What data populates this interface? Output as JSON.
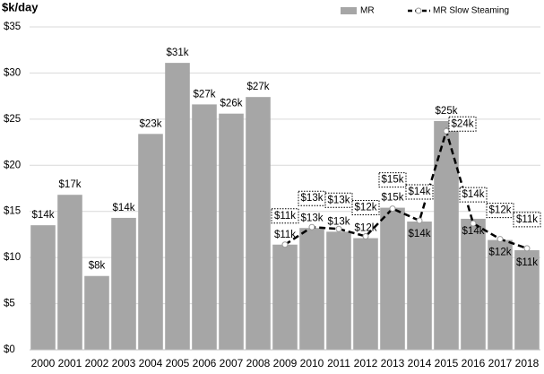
{
  "chart_data": {
    "type": "bar",
    "y_label": "$k/day",
    "categories": [
      "2000",
      "2001",
      "2002",
      "2003",
      "2004",
      "2005",
      "2006",
      "2007",
      "2008",
      "2009",
      "2010",
      "2011",
      "2012",
      "2013",
      "2014",
      "2015",
      "2016",
      "2017",
      "2018"
    ],
    "series": [
      {
        "name": "MR",
        "type": "bar",
        "color": "#a6a6a6",
        "values": [
          13.5,
          16.8,
          8.0,
          14.3,
          23.4,
          31.1,
          26.6,
          25.6,
          27.4,
          11.4,
          13.2,
          12.8,
          12.1,
          15.4,
          13.9,
          24.8,
          14.2,
          11.9,
          10.8
        ],
        "value_labels": [
          "$14k",
          "$17k",
          "$8k",
          "$14k",
          "$23k",
          "$31k",
          "$27k",
          "$26k",
          "$27k",
          "$11k",
          "$13k",
          "$13k",
          "$12k",
          "$15k",
          "$14k",
          "$25k",
          "$14k",
          "$12k",
          "$11k"
        ]
      },
      {
        "name": "MR Slow Steaming",
        "type": "line",
        "color": "#000000",
        "values": [
          null,
          null,
          null,
          null,
          null,
          null,
          null,
          null,
          null,
          11.4,
          13.3,
          13.1,
          12.3,
          15.3,
          14.0,
          23.7,
          13.7,
          12.0,
          11.0
        ],
        "value_labels": [
          null,
          null,
          null,
          null,
          null,
          null,
          null,
          null,
          null,
          "$11k",
          "$13k",
          "$13k",
          "$12k",
          "$15k",
          "$14k",
          "$24k",
          "$14k",
          "$12k",
          "$11k"
        ]
      }
    ],
    "ylim": [
      0,
      35
    ],
    "yticks": [
      {
        "value": 0,
        "label": "$0"
      },
      {
        "value": 5,
        "label": "$5"
      },
      {
        "value": 10,
        "label": "$10"
      },
      {
        "value": 15,
        "label": "$15"
      },
      {
        "value": 20,
        "label": "$20"
      },
      {
        "value": 25,
        "label": "$25"
      },
      {
        "value": 30,
        "label": "$30"
      },
      {
        "value": 35,
        "label": "$35"
      }
    ],
    "grid": true,
    "legend": "top-right"
  }
}
